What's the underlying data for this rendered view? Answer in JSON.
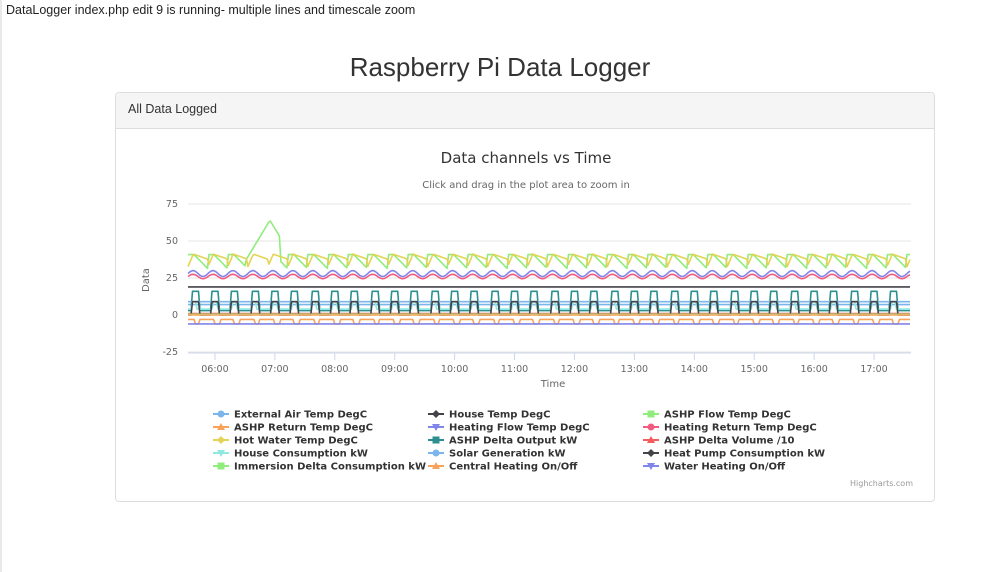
{
  "header": {
    "note": "DataLogger index.php edit 9 is running- multiple lines and timescale zoom",
    "page_title": "Raspberry Pi Data Logger"
  },
  "panel": {
    "heading": "All Data Logged"
  },
  "credits": "Highcharts.com",
  "colors": {
    "panel_border": "#dddddd",
    "panel_heading_bg": "#f5f5f5"
  },
  "chart_data": {
    "type": "line",
    "title": "Data channels vs Time",
    "subtitle": "Click and drag in the plot area to zoom in",
    "xlabel": "Time",
    "ylabel": "Data",
    "ylim": [
      -25,
      75
    ],
    "yticks": [
      -25,
      0,
      25,
      50,
      75
    ],
    "xlim": [
      "05:33",
      "17:37"
    ],
    "xticks": [
      "06:00",
      "07:00",
      "08:00",
      "09:00",
      "10:00",
      "11:00",
      "12:00",
      "13:00",
      "14:00",
      "15:00",
      "16:00",
      "17:00"
    ],
    "grid": true,
    "legend_position": "bottom",
    "series": [
      {
        "name": "External Air Temp DegC",
        "color": "#7cb5ec",
        "marker": "circle",
        "pattern": "flat",
        "base": 7,
        "amp": 0
      },
      {
        "name": "House Temp DegC",
        "color": "#434348",
        "marker": "diamond",
        "pattern": "flat",
        "base": 19,
        "amp": 0
      },
      {
        "name": "ASHP Flow Temp DegC",
        "color": "#90ed7d",
        "marker": "square",
        "pattern": "saw_spike",
        "base": 36,
        "amp": 8,
        "spike": 64
      },
      {
        "name": "ASHP Return Temp DegC",
        "color": "#f7a35c",
        "marker": "triangle",
        "pattern": "dips",
        "base": -3,
        "amp": -3
      },
      {
        "name": "Heating Flow Temp DegC",
        "color": "#8085e9",
        "marker": "triangle-down",
        "pattern": "wave_small",
        "base": 28,
        "amp": 2
      },
      {
        "name": "Heating Return Temp DegC",
        "color": "#f15c80",
        "marker": "circle",
        "pattern": "wave_small",
        "base": 26,
        "amp": 1.5
      },
      {
        "name": "Hot Water Temp DegC",
        "color": "#e4d354",
        "marker": "diamond",
        "pattern": "saw",
        "base": 37,
        "amp": 7
      },
      {
        "name": "ASHP Delta Output kW",
        "color": "#2b908f",
        "marker": "square",
        "pattern": "pulse",
        "base": 3,
        "amp": 13
      },
      {
        "name": "ASHP Delta Volume /10",
        "color": "#f45b5b",
        "marker": "triangle",
        "pattern": "flat",
        "base": 1,
        "amp": 0
      },
      {
        "name": "House Consumption kW",
        "color": "#91e8e1",
        "marker": "triangle-down",
        "pattern": "pulse_small",
        "base": 4,
        "amp": 5
      },
      {
        "name": "Solar Generation kW",
        "color": "#7cb5ec",
        "marker": "circle",
        "pattern": "flat",
        "base": 9,
        "amp": 0
      },
      {
        "name": "Heat Pump Consumption kW",
        "color": "#434348",
        "marker": "diamond",
        "pattern": "pulse",
        "base": 0,
        "amp": 9
      },
      {
        "name": "Immersion Delta Consumption kW",
        "color": "#90ed7d",
        "marker": "square",
        "pattern": "flat",
        "base": 0.5,
        "amp": 0
      },
      {
        "name": "Central Heating On/Off",
        "color": "#f7a35c",
        "marker": "triangle",
        "pattern": "flat",
        "base": 0,
        "amp": 0
      },
      {
        "name": "Water Heating On/Off",
        "color": "#8085e9",
        "marker": "triangle-down",
        "pattern": "flat",
        "base": -6,
        "amp": 0
      }
    ]
  }
}
